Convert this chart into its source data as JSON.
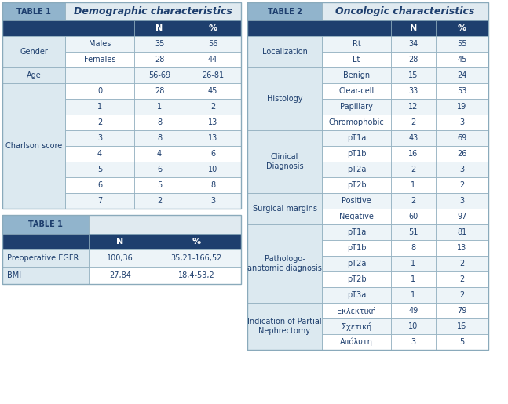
{
  "colors": {
    "header_blue": "#1e3f6e",
    "tab_label_bg": "#91b4cc",
    "tab_label_text": "#1e3f6e",
    "title_text": "#1e3f6e",
    "group_label_bg": "#dce9f0",
    "odd_row_bg": "#edf4f8",
    "white": "#ffffff",
    "title_bg": "#e0eaf0",
    "cell_text": "#1e3f6e",
    "border": "#8aaabb"
  },
  "table1_title": "Demographic characteristics",
  "table1_label": "TABLE 1",
  "table1_rows": [
    {
      "group": "Gender",
      "sub": "Males",
      "N": "35",
      "pct": "56"
    },
    {
      "group": "Gender",
      "sub": "Females",
      "N": "28",
      "pct": "44"
    },
    {
      "group": "Age",
      "sub": "",
      "N": "56-69",
      "pct": "26-81"
    },
    {
      "group": "Charlson score",
      "sub": "0",
      "N": "28",
      "pct": "45"
    },
    {
      "group": "Charlson score",
      "sub": "1",
      "N": "1",
      "pct": "2"
    },
    {
      "group": "Charlson score",
      "sub": "2",
      "N": "8",
      "pct": "13"
    },
    {
      "group": "Charlson score",
      "sub": "3",
      "N": "8",
      "pct": "13"
    },
    {
      "group": "Charlson score",
      "sub": "4",
      "N": "4",
      "pct": "6"
    },
    {
      "group": "Charlson score",
      "sub": "5",
      "N": "6",
      "pct": "10"
    },
    {
      "group": "Charlson score",
      "sub": "6",
      "N": "5",
      "pct": "8"
    },
    {
      "group": "Charlson score",
      "sub": "7",
      "N": "2",
      "pct": "3"
    }
  ],
  "table1b_label": "TABLE 1",
  "table1b_rows": [
    {
      "group": "Preoperative EGFR",
      "N": "100,36",
      "pct": "35,21-166,52"
    },
    {
      "group": "BMI",
      "N": "27,84",
      "pct": "18,4-53,2"
    }
  ],
  "table2_title": "Oncologic characteristics",
  "table2_label": "TABLE 2",
  "table2_rows": [
    {
      "group": "Localization",
      "sub": "Rt",
      "N": "34",
      "pct": "55"
    },
    {
      "group": "Localization",
      "sub": "Lt",
      "N": "28",
      "pct": "45"
    },
    {
      "group": "Histology",
      "sub": "Benign",
      "N": "15",
      "pct": "24"
    },
    {
      "group": "Histology",
      "sub": "Clear-cell",
      "N": "33",
      "pct": "53"
    },
    {
      "group": "Histology",
      "sub": "Papillary",
      "N": "12",
      "pct": "19"
    },
    {
      "group": "Histology",
      "sub": "Chromophobic",
      "N": "2",
      "pct": "3"
    },
    {
      "group": "Clinical\nDiagnosis",
      "sub": "pT1a",
      "N": "43",
      "pct": "69"
    },
    {
      "group": "Clinical\nDiagnosis",
      "sub": "pT1b",
      "N": "16",
      "pct": "26"
    },
    {
      "group": "Clinical\nDiagnosis",
      "sub": "pT2a",
      "N": "2",
      "pct": "3"
    },
    {
      "group": "Clinical\nDiagnosis",
      "sub": "pT2b",
      "N": "1",
      "pct": "2"
    },
    {
      "group": "Surgical margins",
      "sub": "Positive",
      "N": "2",
      "pct": "3"
    },
    {
      "group": "Surgical margins",
      "sub": "Negative",
      "N": "60",
      "pct": "97"
    },
    {
      "group": "Pathologo-\nanatomic diagnosis",
      "sub": "pT1a",
      "N": "51",
      "pct": "81"
    },
    {
      "group": "Pathologo-\nanatomic diagnosis",
      "sub": "pT1b",
      "N": "8",
      "pct": "13"
    },
    {
      "group": "Pathologo-\nanatomic diagnosis",
      "sub": "pT2a",
      "N": "1",
      "pct": "2"
    },
    {
      "group": "Pathologo-\nanatomic diagnosis",
      "sub": "pT2b",
      "N": "1",
      "pct": "2"
    },
    {
      "group": "Pathologo-\nanatomic diagnosis",
      "sub": "pT3a",
      "N": "1",
      "pct": "2"
    },
    {
      "group": "Indication of Partial\nNephrectomy",
      "sub": "Εκλεκτική",
      "N": "49",
      "pct": "79"
    },
    {
      "group": "Indication of Partial\nNephrectomy",
      "sub": "Σχετική",
      "N": "10",
      "pct": "16"
    },
    {
      "group": "Indication of Partial\nNephrectomy",
      "sub": "Απόλυτη",
      "N": "3",
      "pct": "5"
    }
  ]
}
